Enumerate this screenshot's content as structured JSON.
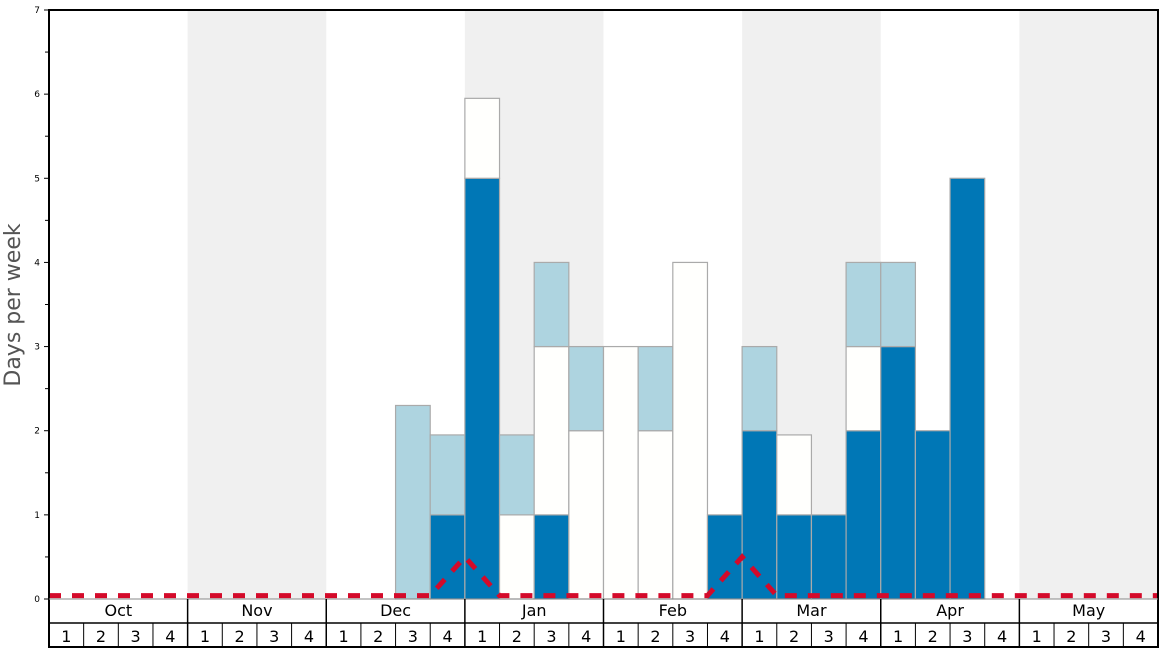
{
  "chart_data": {
    "type": "bar",
    "stacked": true,
    "ylabel": "Days per week",
    "ylim": [
      0,
      7
    ],
    "yticks": [
      "0",
      "1",
      "2",
      "3",
      "4",
      "5",
      "6",
      "7"
    ],
    "months": [
      "Oct",
      "Nov",
      "Dec",
      "Jan",
      "Feb",
      "Mar",
      "Apr",
      "May"
    ],
    "week_labels": [
      "1",
      "2",
      "3",
      "4"
    ],
    "shaded_months": [
      "Nov",
      "Jan",
      "Mar",
      "May"
    ],
    "colors": {
      "dark": "#0077b6",
      "light": "#aed4e0",
      "white": "#fffffd",
      "line": "#d40a2a",
      "band": "#f0f0f0"
    },
    "series": [
      {
        "name": "dark",
        "values": [
          0,
          0,
          0,
          0,
          0,
          0,
          0,
          0,
          0,
          0,
          0,
          1,
          5,
          0,
          1,
          0,
          0,
          0,
          0,
          1,
          2,
          1,
          1,
          2,
          3,
          2,
          5,
          0,
          0,
          0,
          0,
          0
        ]
      },
      {
        "name": "white",
        "values": [
          0,
          0,
          0,
          0,
          0,
          0,
          0,
          0,
          0,
          0,
          0,
          0,
          0.95,
          1,
          2,
          2,
          3,
          2,
          4,
          0,
          0,
          0.95,
          0,
          1,
          0,
          0,
          0,
          0,
          0,
          0,
          0,
          0
        ]
      },
      {
        "name": "light",
        "values": [
          0,
          0,
          0,
          0,
          0,
          0,
          0,
          0,
          0,
          0,
          2.3,
          0.95,
          0,
          0.95,
          1,
          1,
          0,
          1,
          0,
          0,
          1,
          0,
          0,
          1,
          1,
          0,
          0,
          0,
          0,
          0,
          0,
          0
        ]
      }
    ],
    "stack_order": [
      [],
      [],
      [],
      [],
      [],
      [],
      [],
      [],
      [],
      [],
      [
        "light"
      ],
      [
        "dark",
        "light"
      ],
      [
        "dark",
        "white"
      ],
      [
        "white",
        "light"
      ],
      [
        "dark",
        "white",
        "light"
      ],
      [
        "white",
        "light"
      ],
      [
        "white"
      ],
      [
        "white",
        "light"
      ],
      [
        "white"
      ],
      [
        "dark"
      ],
      [
        "dark",
        "light"
      ],
      [
        "dark",
        "white"
      ],
      [
        "dark"
      ],
      [
        "dark",
        "white",
        "light"
      ],
      [
        "dark",
        "light"
      ],
      [
        "dark"
      ],
      [
        "dark"
      ],
      [],
      [],
      [],
      [],
      []
    ],
    "line": {
      "name": "threshold",
      "values_at_week_start": [
        0.04,
        0.04,
        0.04,
        0.04,
        0.04,
        0.04,
        0.04,
        0.04,
        0.04,
        0.04,
        0.04,
        0.04,
        0.5,
        0.04,
        0.04,
        0.04,
        0.04,
        0.04,
        0.04,
        0.04,
        0.5,
        0.04,
        0.04,
        0.04,
        0.04,
        0.04,
        0.04,
        0.04,
        0.04,
        0.04,
        0.04,
        0.04,
        0.04
      ]
    }
  }
}
